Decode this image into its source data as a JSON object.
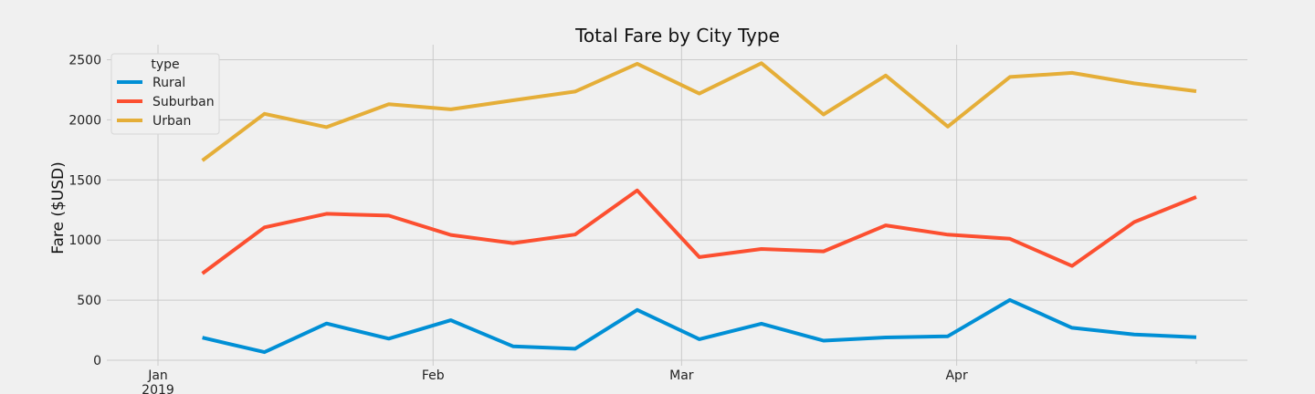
{
  "chart_data": {
    "type": "line",
    "title": "Total Fare by City Type",
    "xlabel": "",
    "ylabel": "Fare ($USD)",
    "ylim": [
      0,
      2600
    ],
    "yticks": [
      0,
      500,
      1000,
      1500,
      2000,
      2500
    ],
    "x": [
      "2019-01-06",
      "2019-01-13",
      "2019-01-20",
      "2019-01-27",
      "2019-02-03",
      "2019-02-10",
      "2019-02-17",
      "2019-02-24",
      "2019-03-03",
      "2019-03-10",
      "2019-03-17",
      "2019-03-24",
      "2019-03-31",
      "2019-04-07",
      "2019-04-14",
      "2019-04-21",
      "2019-04-28"
    ],
    "xticks": [
      {
        "date": "2019-01-01",
        "label": "Jan",
        "sublabel": "2019"
      },
      {
        "date": "2019-02-01",
        "label": "Feb",
        "sublabel": ""
      },
      {
        "date": "2019-03-01",
        "label": "Mar",
        "sublabel": ""
      },
      {
        "date": "2019-04-01",
        "label": "Apr",
        "sublabel": ""
      }
    ],
    "grid": true,
    "legend": {
      "title": "type",
      "placement": "top-left"
    },
    "series": [
      {
        "name": "Rural",
        "color": "#008fd5",
        "values": [
          187.92,
          67.65,
          306.0,
          179.69,
          333.08,
          115.8,
          95.82,
          419.06,
          175.14,
          303.94,
          163.39,
          189.76,
          199.42,
          501.24,
          269.79,
          214.14,
          191.85
        ]
      },
      {
        "name": "Suburban",
        "color": "#fc4f30",
        "values": [
          721.6,
          1105.13,
          1218.2,
          1203.28,
          1042.79,
          974.34,
          1045.5,
          1412.74,
          858.46,
          925.27,
          906.2,
          1122.2,
          1045.06,
          1010.73,
          784.82,
          1149.27,
          1357.75
        ]
      },
      {
        "name": "Urban",
        "color": "#e5ae38",
        "values": [
          1661.68,
          2050.43,
          1939.02,
          2129.51,
          2086.94,
          2162.64,
          2235.07,
          2466.29,
          2218.2,
          2470.93,
          2044.42,
          2368.37,
          1943.93,
          2356.7,
          2390.49,
          2303.8,
          2238.29
        ]
      }
    ]
  }
}
